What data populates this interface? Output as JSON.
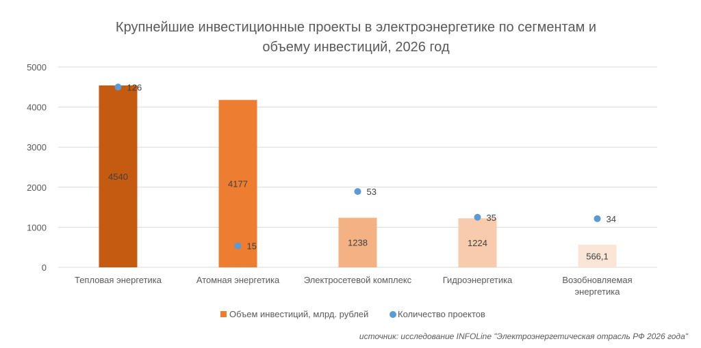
{
  "chart_data": {
    "type": "bar",
    "title_lines": [
      "Крупнейшие инвестиционные проекты в электроэнергетике по сегментам и",
      "объему инвестиций, 2026 год"
    ],
    "categories": [
      [
        "Тепловая энергетика"
      ],
      [
        "Атомная энергетика"
      ],
      [
        "Электросетевой комплекс"
      ],
      [
        "Гидроэнергетика"
      ],
      [
        "Возобновляемая",
        "энергетика"
      ]
    ],
    "series": [
      {
        "name": "Объем инвестиций, млрд. рублей",
        "type": "bar",
        "axis": "primary",
        "values": [
          4540,
          4177,
          1238,
          1224,
          566.1
        ],
        "labels": [
          "4540",
          "4177",
          "1238",
          "1224",
          "566,1"
        ],
        "colors": [
          "#C55A11",
          "#ED7D31",
          "#F4B183",
          "#F8CBAD",
          "#FBE5D6"
        ],
        "legend_color": "#ED7D31"
      },
      {
        "name": "Количество проектов",
        "type": "scatter",
        "axis": "secondary",
        "values": [
          126,
          15,
          53,
          35,
          34
        ],
        "labels": [
          "126",
          "15",
          "53",
          "35",
          "34"
        ],
        "color": "#5B9BD5"
      }
    ],
    "ylim": [
      0,
      5000
    ],
    "yticks": [
      "0",
      "1000",
      "2000",
      "3000",
      "4000",
      "5000"
    ],
    "y2lim": [
      0,
      140
    ],
    "grid": true,
    "legend": "bottom",
    "source": "источник: исследование INFOLine \"Электроэнергетическая отрасль РФ 2026 года\""
  }
}
